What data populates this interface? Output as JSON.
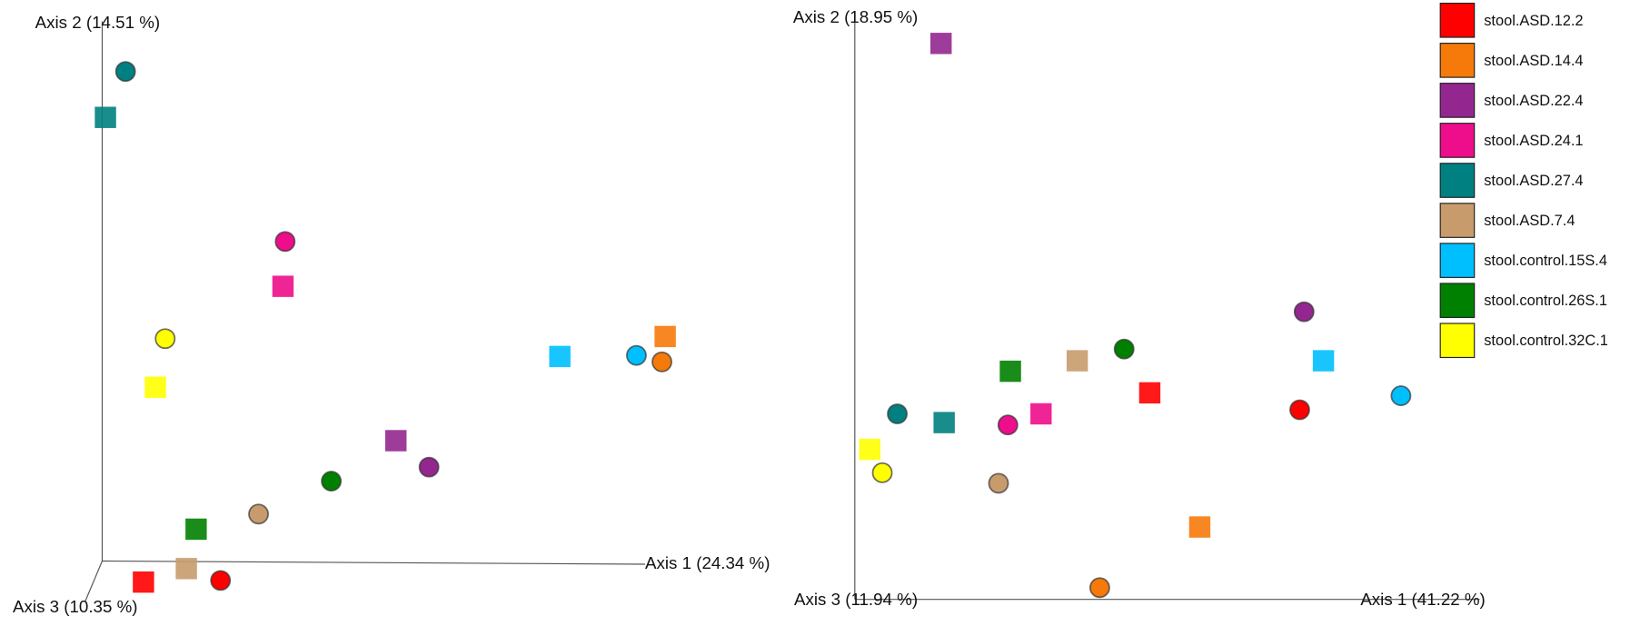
{
  "legend": [
    {
      "name": "stool.ASD.12.2",
      "color": "#ff0000"
    },
    {
      "name": "stool.ASD.14.4",
      "color": "#f57a0a"
    },
    {
      "name": "stool.ASD.22.4",
      "color": "#93278f"
    },
    {
      "name": "stool.ASD.24.1",
      "color": "#ee0d8a"
    },
    {
      "name": "stool.ASD.27.4",
      "color": "#008080"
    },
    {
      "name": "stool.ASD.7.4",
      "color": "#c89b6d"
    },
    {
      "name": "stool.control.15S.4",
      "color": "#00bfff"
    },
    {
      "name": "stool.control.26S.1",
      "color": "#008000"
    },
    {
      "name": "stool.control.32C.1",
      "color": "#ffff00"
    }
  ],
  "chart_data": [
    {
      "type": "scatter",
      "x_label": "Axis 1 (24.34 %)",
      "y_label": "Axis 2 (14.51 %)",
      "z_label": "Axis 3 (10.35 %)",
      "xlim": [
        0,
        1
      ],
      "ylim": [
        0,
        1
      ],
      "markers": [
        "circle",
        "square"
      ],
      "series": [
        {
          "x": [
            0.218,
            0.076
          ],
          "y": [
            -0.036,
            -0.039
          ]
        },
        {
          "x": [
            1.031,
            1.037
          ],
          "y": [
            0.369,
            0.416
          ]
        },
        {
          "x": [
            0.602,
            0.541
          ],
          "y": [
            0.174,
            0.223
          ]
        },
        {
          "x": [
            0.337,
            0.333
          ],
          "y": [
            0.592,
            0.509
          ]
        },
        {
          "x": [
            0.043,
            0.006
          ],
          "y": [
            0.907,
            0.822
          ]
        },
        {
          "x": [
            0.288,
            0.155
          ],
          "y": [
            0.087,
            -0.014
          ]
        },
        {
          "x": [
            0.984,
            0.843
          ],
          "y": [
            0.381,
            0.379
          ]
        },
        {
          "x": [
            0.422,
            0.173
          ],
          "y": [
            0.148,
            0.059
          ]
        },
        {
          "x": [
            0.116,
            0.098
          ],
          "y": [
            0.412,
            0.322
          ]
        }
      ]
    },
    {
      "type": "scatter",
      "x_label": "Axis 1 (41.22 %)",
      "y_label": "Axis 2 (18.95 %)",
      "z_label": "Axis 3 (11.94 %)",
      "xlim": [
        0,
        1
      ],
      "ylim": [
        0,
        1
      ],
      "markers": [
        "circle",
        "square"
      ],
      "series": [
        {
          "x": [
            0.712,
            0.472
          ],
          "y": [
            0.325,
            0.354
          ]
        },
        {
          "x": [
            0.392,
            0.552
          ],
          "y": [
            0.02,
            0.124
          ]
        },
        {
          "x": [
            0.719,
            0.138
          ],
          "y": [
            0.493,
            0.953
          ]
        },
        {
          "x": [
            0.245,
            0.298
          ],
          "y": [
            0.299,
            0.318
          ]
        },
        {
          "x": [
            0.068,
            0.143
          ],
          "y": [
            0.318,
            0.303
          ]
        },
        {
          "x": [
            0.23,
            0.356
          ],
          "y": [
            0.199,
            0.409
          ]
        },
        {
          "x": [
            0.874,
            0.75
          ],
          "y": [
            0.349,
            0.409
          ]
        },
        {
          "x": [
            0.431,
            0.249
          ],
          "y": [
            0.429,
            0.391
          ]
        },
        {
          "x": [
            0.044,
            0.024
          ],
          "y": [
            0.217,
            0.257
          ]
        }
      ]
    }
  ]
}
